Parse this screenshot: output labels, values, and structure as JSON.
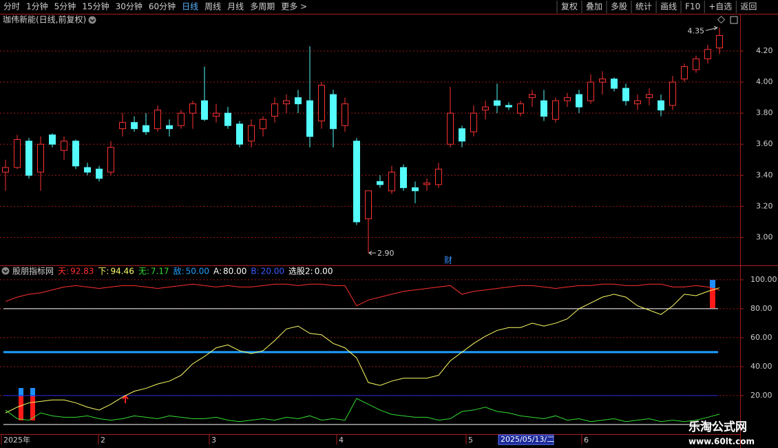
{
  "toolbar": {
    "left": [
      "分时",
      "1分钟",
      "5分钟",
      "15分钟",
      "30分钟",
      "60分钟",
      "日线",
      "周线",
      "月线",
      "多周期",
      "更多 >"
    ],
    "active": "日线",
    "right": [
      "复权",
      "叠加",
      "多股",
      "统计",
      "画线",
      "F10",
      "+自选",
      "返回"
    ]
  },
  "chart_data": [
    {
      "type": "candlestick",
      "title": "珈伟新能(日线,前复权)",
      "up_color": "#ff3232",
      "down_color": "#54fcfc",
      "open": [
        3.42,
        3.45,
        3.62,
        3.42,
        3.66,
        3.56,
        3.62,
        3.45,
        3.44,
        3.42,
        3.7,
        3.74,
        3.72,
        3.7,
        3.72,
        3.72,
        3.8,
        3.88,
        3.78,
        3.8,
        3.73,
        3.62,
        3.7,
        3.78,
        3.86,
        3.9,
        3.88,
        3.75,
        3.92,
        3.72,
        3.62,
        3.12,
        3.36,
        3.3,
        3.45,
        3.32,
        3.34,
        3.34,
        3.6,
        3.7,
        3.68,
        3.82,
        3.88,
        3.85,
        3.8,
        3.9,
        3.88,
        3.76,
        3.88,
        3.92,
        3.88,
        4.0,
        4.02,
        3.96,
        3.86,
        3.9,
        3.88,
        3.85,
        4.02,
        4.08,
        4.15,
        4.22
      ],
      "high": [
        3.5,
        3.66,
        3.64,
        3.65,
        3.67,
        3.65,
        3.63,
        3.48,
        3.46,
        3.62,
        3.8,
        3.78,
        3.8,
        3.85,
        3.76,
        3.82,
        3.88,
        4.1,
        3.86,
        3.84,
        3.75,
        3.76,
        3.78,
        3.9,
        3.92,
        3.95,
        4.23,
        4.0,
        3.95,
        3.9,
        3.64,
        3.3,
        3.4,
        3.46,
        3.47,
        3.36,
        3.38,
        3.48,
        3.97,
        3.72,
        3.85,
        3.88,
        3.99,
        3.87,
        3.88,
        3.95,
        3.95,
        3.9,
        3.93,
        3.95,
        4.05,
        4.07,
        4.03,
        3.99,
        3.92,
        3.96,
        3.92,
        4.04,
        4.12,
        4.17,
        4.24,
        4.35
      ],
      "low": [
        3.3,
        3.44,
        3.38,
        3.3,
        3.58,
        3.5,
        3.44,
        3.4,
        3.36,
        3.4,
        3.65,
        3.68,
        3.66,
        3.68,
        3.65,
        3.7,
        3.7,
        3.75,
        3.74,
        3.7,
        3.58,
        3.58,
        3.65,
        3.74,
        3.8,
        3.8,
        3.58,
        3.7,
        3.58,
        3.68,
        3.08,
        2.9,
        3.32,
        3.28,
        3.3,
        3.22,
        3.3,
        3.32,
        3.58,
        3.58,
        3.65,
        3.76,
        3.8,
        3.82,
        3.78,
        3.84,
        3.75,
        3.74,
        3.84,
        3.8,
        3.86,
        3.92,
        3.94,
        3.85,
        3.82,
        3.85,
        3.78,
        3.82,
        4.0,
        4.06,
        4.12,
        4.18
      ],
      "close": [
        3.45,
        3.63,
        3.4,
        3.6,
        3.6,
        3.62,
        3.46,
        3.42,
        3.38,
        3.58,
        3.74,
        3.7,
        3.68,
        3.82,
        3.7,
        3.8,
        3.86,
        3.76,
        3.8,
        3.72,
        3.6,
        3.72,
        3.76,
        3.86,
        3.88,
        3.86,
        3.65,
        3.98,
        3.7,
        3.86,
        3.1,
        3.3,
        3.34,
        3.42,
        3.32,
        3.3,
        3.35,
        3.44,
        3.8,
        3.62,
        3.8,
        3.84,
        3.85,
        3.84,
        3.86,
        3.92,
        3.78,
        3.88,
        3.9,
        3.84,
        4.0,
        4.02,
        3.96,
        3.88,
        3.88,
        3.92,
        3.82,
        4.0,
        4.1,
        4.15,
        4.21,
        4.3
      ],
      "ylim": [
        2.82,
        4.36
      ],
      "yticks": [
        {
          "value": 3.0,
          "label": "3.00"
        },
        {
          "value": 3.2,
          "label": "3.20"
        },
        {
          "value": 3.4,
          "label": "3.40"
        },
        {
          "value": 3.6,
          "label": "3.60"
        },
        {
          "value": 3.8,
          "label": "3.80"
        },
        {
          "value": 4.0,
          "label": "4.00"
        },
        {
          "value": 4.2,
          "label": "4.20"
        }
      ],
      "annotations": [
        {
          "value": 4.35,
          "label": "4.35"
        },
        {
          "value": 2.9,
          "label": "2.90"
        }
      ],
      "marker": "财",
      "date_labels": [
        "2025年",
        "2",
        "3",
        "4",
        "5",
        "6"
      ],
      "cursor_date": "2025/05/13/二"
    },
    {
      "type": "line",
      "title": "股朋指标网",
      "series": [
        {
          "name": "天:",
          "color": "#ff3030",
          "values": [
            85,
            88,
            90,
            91,
            93,
            95,
            96,
            95,
            94,
            95,
            96,
            96,
            95,
            94,
            95,
            96,
            97,
            96,
            95,
            96,
            95,
            95,
            96,
            97,
            97,
            96,
            97,
            97,
            96,
            96,
            82,
            86,
            88,
            90,
            92,
            93,
            94,
            95,
            96,
            90,
            92,
            93,
            94,
            95,
            96,
            96,
            95,
            94,
            95,
            96,
            96,
            97,
            97,
            96,
            96,
            97,
            97,
            95,
            95,
            96,
            95,
            92.83
          ]
        },
        {
          "name": "下:",
          "color": "#ffff66",
          "values": [
            8,
            12,
            15,
            16,
            17,
            17,
            15,
            12,
            10,
            14,
            19,
            23,
            25,
            28,
            30,
            34,
            42,
            47,
            53,
            55,
            51,
            49,
            51,
            58,
            66,
            68,
            63,
            62,
            56,
            53,
            46,
            29,
            27,
            30,
            32,
            32,
            32,
            34,
            44,
            50,
            56,
            61,
            65,
            67,
            67,
            70,
            68,
            70,
            73,
            80,
            84,
            88,
            90,
            88,
            82,
            79,
            76,
            82,
            90,
            89,
            92,
            94.46
          ]
        },
        {
          "name": "无:",
          "color": "#33dd33",
          "values": [
            10,
            4,
            3,
            8,
            6,
            5,
            5,
            6,
            4,
            3,
            4,
            6,
            5,
            4,
            6,
            5,
            4,
            4,
            5,
            3,
            2,
            3,
            4,
            3,
            5,
            4,
            6,
            3,
            4,
            3,
            18,
            14,
            10,
            7,
            6,
            5,
            5,
            3,
            4,
            9,
            10,
            12,
            9,
            8,
            6,
            5,
            4,
            6,
            3,
            4,
            2,
            3,
            4,
            2,
            3,
            4,
            2,
            3,
            2,
            3,
            5,
            7.17
          ]
        }
      ],
      "levels": [
        {
          "name": "敌:",
          "value": 50,
          "label": "50.00",
          "color": "#1e9fff",
          "width": 3
        },
        {
          "name": "A:",
          "value": 80,
          "label": "80.00",
          "color": "#ffffff",
          "width": 1
        },
        {
          "name": "B:",
          "value": 20,
          "label": "20.00",
          "color": "#2a2ae0",
          "width": 1
        },
        {
          "name": "选股2:",
          "value": 0,
          "label": "0.00",
          "color": "#ffffff",
          "width": 1
        }
      ],
      "ylim": [
        -6.7,
        105.2
      ],
      "yticks": [
        {
          "value": 20,
          "label": "20.00"
        },
        {
          "value": 40,
          "label": "40.00"
        },
        {
          "value": 60,
          "label": "60.00"
        },
        {
          "value": 80,
          "label": "80.00"
        },
        {
          "value": 100,
          "label": "100.00"
        }
      ]
    }
  ],
  "watermark": {
    "name": "乐淘公式网",
    "url": "www.60lt.com"
  }
}
